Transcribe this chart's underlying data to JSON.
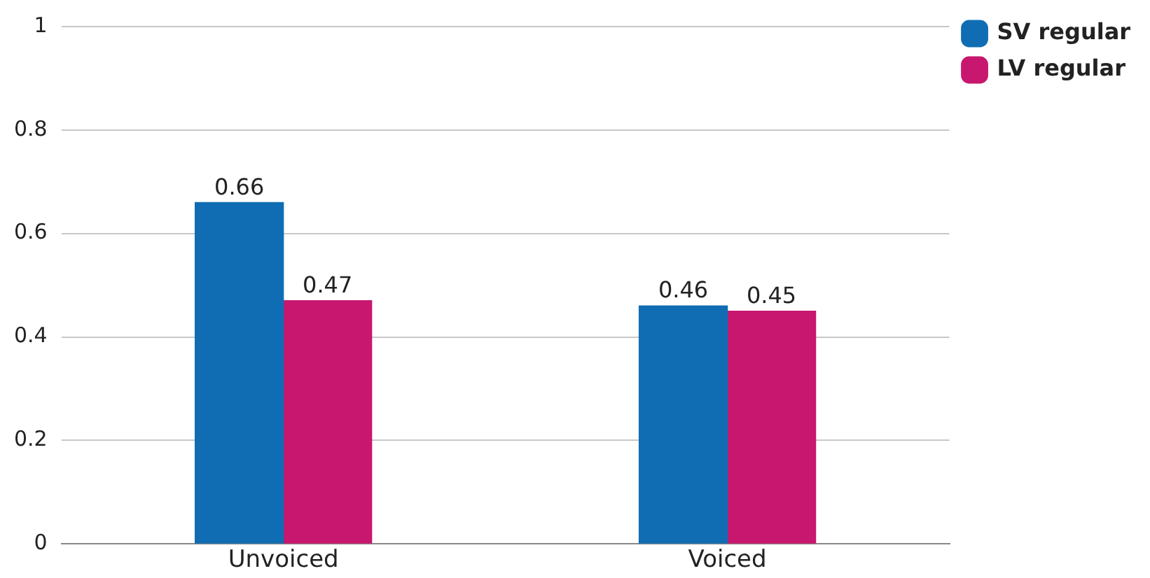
{
  "chart_data": {
    "type": "bar",
    "categories": [
      "Unvoiced",
      "Voiced"
    ],
    "series": [
      {
        "name": "SV regular",
        "color": "#106db3",
        "values": [
          0.66,
          0.46
        ]
      },
      {
        "name": "LV regular",
        "color": "#c8176e",
        "values": [
          0.47,
          0.45
        ]
      }
    ],
    "ylim": [
      0,
      1
    ],
    "yticks": [
      0,
      0.2,
      0.4,
      0.6,
      0.8,
      1
    ],
    "grid": "y",
    "legend": "top right",
    "data_labels": true
  }
}
